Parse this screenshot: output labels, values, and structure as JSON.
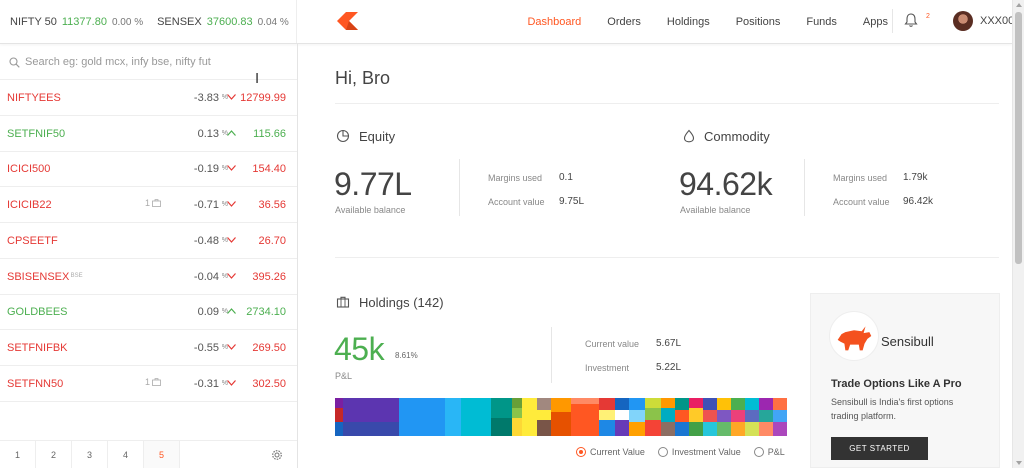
{
  "indices": [
    {
      "name": "NIFTY 50",
      "value": "11377.80",
      "change": "0.00 %"
    },
    {
      "name": "SENSEX",
      "value": "37600.83",
      "change": "0.04 %"
    }
  ],
  "nav": {
    "items": [
      "Dashboard",
      "Orders",
      "Holdings",
      "Positions",
      "Funds",
      "Apps"
    ],
    "active": "Dashboard",
    "notification_count": "2",
    "user_id": "XXX00"
  },
  "colors": {
    "accent": "#ff5722",
    "down": "#e53935",
    "up": "#4caf50"
  },
  "icons": {
    "logo": "kite-logo-icon",
    "bell": "bell-icon",
    "search": "search-icon",
    "settings": "gear-icon"
  },
  "watchlist": {
    "search_placeholder": "Search eg: gold mcx, infy bse, nifty fut",
    "instruments": [
      {
        "symbol": "NIFTYEES",
        "badge": "",
        "holdings": "",
        "change_pct": "-3.83",
        "direction": "down",
        "price": "12799.99"
      },
      {
        "symbol": "SETFNIF50",
        "badge": "",
        "holdings": "",
        "change_pct": "0.13",
        "direction": "up",
        "price": "115.66"
      },
      {
        "symbol": "ICICI500",
        "badge": "",
        "holdings": "",
        "change_pct": "-0.19",
        "direction": "down",
        "price": "154.40"
      },
      {
        "symbol": "ICICIB22",
        "badge": "",
        "holdings": "1",
        "change_pct": "-0.71",
        "direction": "down",
        "price": "36.56"
      },
      {
        "symbol": "CPSEETF",
        "badge": "",
        "holdings": "",
        "change_pct": "-0.48",
        "direction": "down",
        "price": "26.70"
      },
      {
        "symbol": "SBISENSEX",
        "badge": "BSE",
        "holdings": "",
        "change_pct": "-0.04",
        "direction": "down",
        "price": "395.26"
      },
      {
        "symbol": "GOLDBEES",
        "badge": "",
        "holdings": "",
        "change_pct": "0.09",
        "direction": "up",
        "price": "2734.10"
      },
      {
        "symbol": "SETFNIFBK",
        "badge": "",
        "holdings": "",
        "change_pct": "-0.55",
        "direction": "down",
        "price": "269.50"
      },
      {
        "symbol": "SETFNN50",
        "badge": "",
        "holdings": "1",
        "change_pct": "-0.31",
        "direction": "down",
        "price": "302.50"
      }
    ],
    "pct_symbol": "%",
    "pages": [
      "1",
      "2",
      "3",
      "4",
      "5"
    ],
    "active_page": "5"
  },
  "dashboard": {
    "greeting": "Hi, Bro",
    "equity": {
      "title": "Equity",
      "available": "9.77L",
      "available_label": "Available balance",
      "margins_label": "Margins used",
      "margins": "0.1",
      "account_label": "Account value",
      "account": "9.75L"
    },
    "commodity": {
      "title": "Commodity",
      "available": "94.62k",
      "available_label": "Available balance",
      "margins_label": "Margins used",
      "margins": "1.79k",
      "account_label": "Account value",
      "account": "96.42k"
    },
    "holdings": {
      "title": "Holdings (142)",
      "pnl": "45k",
      "pnl_pct": "8.61%",
      "pnl_label": "P&L",
      "current_label": "Current value",
      "current": "5.67L",
      "investment_label": "Investment",
      "investment": "5.22L",
      "legend": [
        "Current Value",
        "Investment Value",
        "P&L"
      ],
      "legend_selected": "Current Value"
    }
  },
  "promo": {
    "brand": "Sensibull",
    "title": "Trade Options Like A Pro",
    "text": "Sensibull is India's first options trading platform.",
    "button": "GET STARTED"
  }
}
